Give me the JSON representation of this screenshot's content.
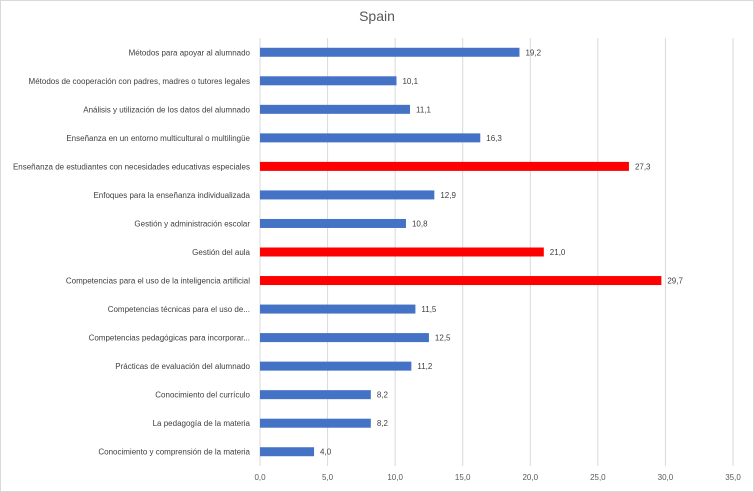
{
  "chart_data": {
    "type": "bar",
    "orientation": "horizontal",
    "title": "Spain",
    "xlabel": "",
    "ylabel": "",
    "xlim": [
      0,
      35
    ],
    "x_ticks": [
      "0,0",
      "5,0",
      "10,0",
      "15,0",
      "20,0",
      "25,0",
      "30,0",
      "35,0"
    ],
    "grid": "vertical",
    "categories": [
      "Métodos para apoyar al alumnado",
      "Métodos de cooperación con padres, madres o tutores legales",
      "Análisis y utilización de los datos del alumnado",
      "Enseñanza en un entorno multicultural o multilingüe",
      "Enseñanza de estudiantes con necesidades educativas especiales",
      "Enfoques para la enseñanza individualizada",
      "Gestión y administración escolar",
      "Gestión del aula",
      "Competencias para el uso de la inteligencia artificial",
      "Competencias técnicas para el uso de...",
      "Competencias pedagógicas para incorporar...",
      "Prácticas de evaluación del alumnado",
      "Conocimiento del currículo",
      "La pedagogía de la materia",
      "Conocimiento y comprensión de la materia"
    ],
    "values": [
      19.2,
      10.1,
      11.1,
      16.3,
      27.3,
      12.9,
      10.8,
      21.0,
      29.7,
      11.5,
      12.5,
      11.2,
      8.2,
      8.2,
      4.0
    ],
    "value_labels": [
      "19,2",
      "10,1",
      "11,1",
      "16,3",
      "27,3",
      "12,9",
      "10,8",
      "21,0",
      "29,7",
      "11,5",
      "12,5",
      "11,2",
      "8,2",
      "8,2",
      "4,0"
    ],
    "highlighted": [
      false,
      false,
      false,
      false,
      true,
      false,
      false,
      true,
      true,
      false,
      false,
      false,
      false,
      false,
      false
    ],
    "colors": {
      "default": "#4472c4",
      "highlight": "#ff0000",
      "grid": "#d9d9d9",
      "text": "#404040"
    }
  }
}
